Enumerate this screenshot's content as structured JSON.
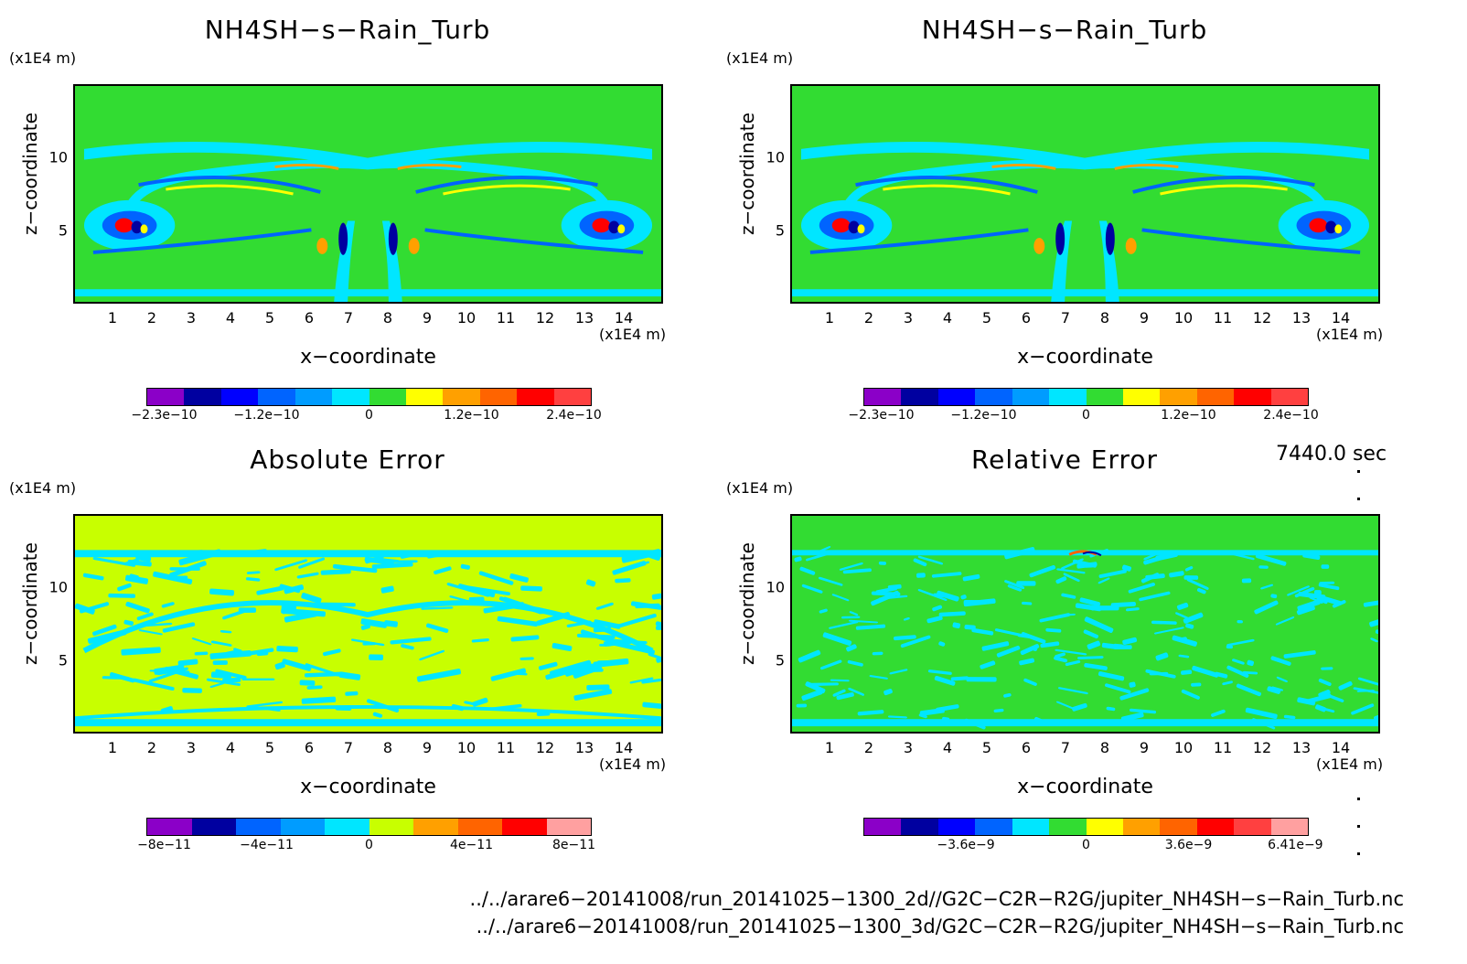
{
  "panels": [
    {
      "title": "NH4SH−s−Rain_Turb",
      "z_unit": "(x1E4 m)",
      "x_unit": "(x1E4 m)",
      "xlabel": "x−coordinate",
      "zlabel": "z−coordinate",
      "colorbar_ticks": [
        "−2.3e−10",
        "−1.2e−10",
        "0",
        "1.2e−10",
        "2.4e−10"
      ],
      "colorbar_colors": [
        "#8b00c8",
        "#0000a0",
        "#0000ff",
        "#0064ff",
        "#009cff",
        "#00e6ff",
        "#32dc32",
        "#ffff00",
        "#ffa000",
        "#ff6400",
        "#ff0000",
        "#ff4040"
      ],
      "background": "#32dc32"
    },
    {
      "title": "NH4SH−s−Rain_Turb",
      "z_unit": "(x1E4 m)",
      "x_unit": "(x1E4 m)",
      "xlabel": "x−coordinate",
      "zlabel": "z−coordinate",
      "colorbar_ticks": [
        "−2.3e−10",
        "−1.2e−10",
        "0",
        "1.2e−10",
        "2.4e−10"
      ],
      "colorbar_colors": [
        "#8b00c8",
        "#0000a0",
        "#0000ff",
        "#0064ff",
        "#009cff",
        "#00e6ff",
        "#32dc32",
        "#ffff00",
        "#ffa000",
        "#ff6400",
        "#ff0000",
        "#ff4040"
      ],
      "background": "#32dc32"
    },
    {
      "title": "Absolute Error",
      "z_unit": "(x1E4 m)",
      "x_unit": "(x1E4 m)",
      "xlabel": "x−coordinate",
      "zlabel": "z−coordinate",
      "colorbar_ticks": [
        "−8e−11",
        "−4e−11",
        "0",
        "4e−11",
        "8e−11"
      ],
      "colorbar_colors": [
        "#8b00c8",
        "#0000a0",
        "#0064ff",
        "#009cff",
        "#00e6ff",
        "#c8ff00",
        "#ffa000",
        "#ff6400",
        "#ff0000",
        "#ffa0a0"
      ],
      "background": "#c8ff00"
    },
    {
      "title": "Relative Error",
      "z_unit": "(x1E4 m)",
      "x_unit": "(x1E4 m)",
      "xlabel": "x−coordinate",
      "zlabel": "z−coordinate",
      "colorbar_ticks": [
        "−3.6e−9",
        "0",
        "3.6e−9",
        "6.41e−9"
      ],
      "colorbar_colors": [
        "#8b00c8",
        "#0000a0",
        "#0000ff",
        "#0064ff",
        "#00e6ff",
        "#32dc32",
        "#ffff00",
        "#ffa000",
        "#ff6400",
        "#ff0000",
        "#ff4040",
        "#ffa0a0"
      ],
      "background": "#32dc32"
    }
  ],
  "time_label": "7440.0 sec",
  "file_paths": [
    "../../arare6−20141008/run_20141025−1300_2d//G2C−C2R−R2G/jupiter_NH4SH−s−Rain_Turb.nc",
    "../../arare6−20141008/run_20141025−1300_3d/G2C−C2R−R2G/jupiter_NH4SH−s−Rain_Turb.nc"
  ],
  "chart_data": [
    {
      "type": "heatmap",
      "title": "NH4SH−s−Rain_Turb",
      "xlabel": "x−coordinate",
      "ylabel": "z−coordinate",
      "x_unit": "(x1E4 m)",
      "y_unit": "(x1E4 m)",
      "xlim": [
        0,
        15
      ],
      "ylim": [
        0,
        15
      ],
      "xticks": [
        1,
        2,
        3,
        4,
        5,
        6,
        7,
        8,
        9,
        10,
        11,
        12,
        13,
        14
      ],
      "yticks": [
        5,
        10
      ],
      "colorbar_range": [
        -2.3e-10,
        2.4e-10
      ]
    },
    {
      "type": "heatmap",
      "title": "NH4SH−s−Rain_Turb",
      "xlabel": "x−coordinate",
      "ylabel": "z−coordinate",
      "x_unit": "(x1E4 m)",
      "y_unit": "(x1E4 m)",
      "xlim": [
        0,
        15
      ],
      "ylim": [
        0,
        15
      ],
      "xticks": [
        1,
        2,
        3,
        4,
        5,
        6,
        7,
        8,
        9,
        10,
        11,
        12,
        13,
        14
      ],
      "yticks": [
        5,
        10
      ],
      "colorbar_range": [
        -2.3e-10,
        2.4e-10
      ]
    },
    {
      "type": "heatmap",
      "title": "Absolute Error",
      "xlabel": "x−coordinate",
      "ylabel": "z−coordinate",
      "x_unit": "(x1E4 m)",
      "y_unit": "(x1E4 m)",
      "xlim": [
        0,
        15
      ],
      "ylim": [
        0,
        15
      ],
      "xticks": [
        1,
        2,
        3,
        4,
        5,
        6,
        7,
        8,
        9,
        10,
        11,
        12,
        13,
        14
      ],
      "yticks": [
        5,
        10
      ],
      "colorbar_range": [
        -1e-10,
        1e-10
      ]
    },
    {
      "type": "heatmap",
      "title": "Relative Error",
      "xlabel": "x−coordinate",
      "ylabel": "z−coordinate",
      "x_unit": "(x1E4 m)",
      "y_unit": "(x1E4 m)",
      "xlim": [
        0,
        15
      ],
      "ylim": [
        0,
        15
      ],
      "xticks": [
        1,
        2,
        3,
        4,
        5,
        6,
        7,
        8,
        9,
        10,
        11,
        12,
        13,
        14
      ],
      "yticks": [
        5,
        10
      ],
      "colorbar_range": [
        -6.41e-09,
        6.41e-09
      ]
    }
  ]
}
